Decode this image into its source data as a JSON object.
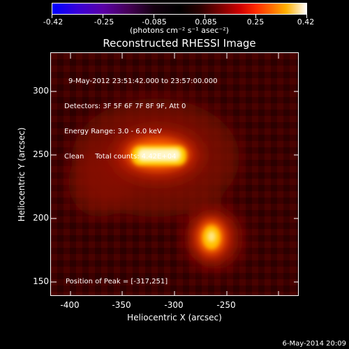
{
  "colorbar": {
    "ticks": [
      "-0.42",
      "-0.25",
      "-0.085",
      "0.085",
      "0.25",
      "0.42"
    ],
    "unit": "(photons cm⁻² s⁻¹ asec⁻²)"
  },
  "title": "Reconstructed RHESSI Image",
  "info": {
    "time": "9-May-2012 23:51:42.000 to 23:57:00.000",
    "detectors": "Detectors: 3F 5F 6F 7F 8F 9F, Att 0",
    "energy": "Energy Range: 3.0 - 6.0 keV",
    "clean": "Clean     Total counts: 4.42E+04"
  },
  "peak": "Position of Peak = [-317,251]",
  "axes": {
    "xlabel": "Heliocentric X (arcsec)",
    "ylabel": "Heliocentric Y (arcsec)",
    "xticks": [
      "-400",
      "-350",
      "-300",
      "-250"
    ],
    "yticks": [
      "300",
      "250",
      "200",
      "150"
    ]
  },
  "footer": "6-May-2014 20:09",
  "colors": {
    "background": "#000000",
    "image_base": "#3b0000",
    "peak": "#ffffff"
  }
}
